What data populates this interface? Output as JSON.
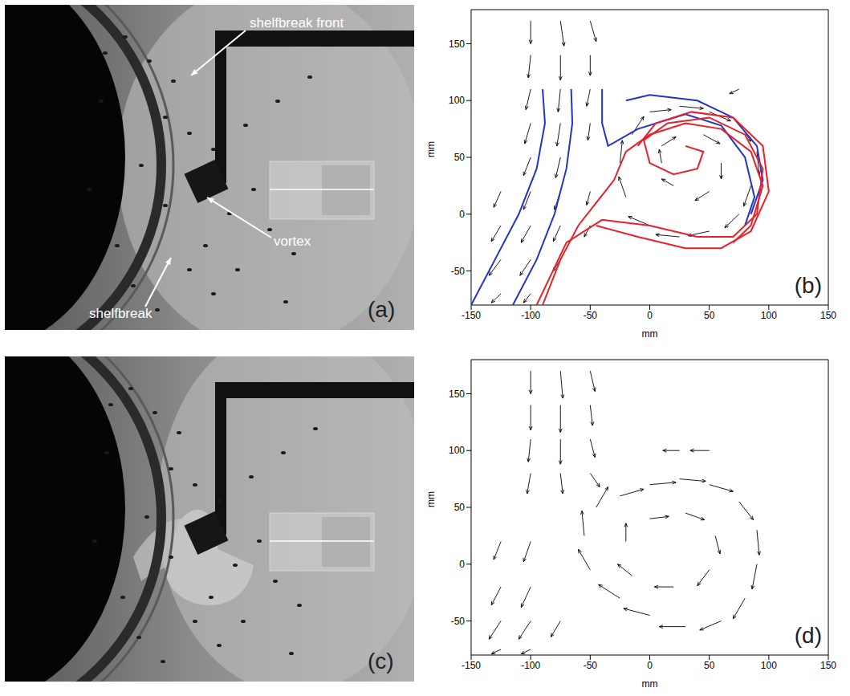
{
  "photos": [
    {
      "label": "(a)",
      "annotations": [
        "shelfbreak front",
        "vortex",
        "shelfbreak"
      ]
    },
    {
      "label": "(c)"
    }
  ],
  "chart_data": [
    {
      "type": "quiver",
      "label": "(b)",
      "xlabel": "mm",
      "ylabel": "mm",
      "xlim": [
        -150,
        150
      ],
      "ylim": [
        -80,
        180
      ],
      "xticks": [
        -150,
        -100,
        -50,
        0,
        50,
        100,
        150
      ],
      "yticks": [
        -50,
        0,
        50,
        100,
        150
      ],
      "color": "#000000",
      "vectors": [
        {
          "x": -100,
          "y": 170,
          "u": 0,
          "v": -20
        },
        {
          "x": -75,
          "y": 170,
          "u": 3,
          "v": -22
        },
        {
          "x": -50,
          "y": 170,
          "u": 5,
          "v": -18
        },
        {
          "x": -100,
          "y": 140,
          "u": -2,
          "v": -20
        },
        {
          "x": -75,
          "y": 140,
          "u": 0,
          "v": -22
        },
        {
          "x": -50,
          "y": 140,
          "u": 0,
          "v": -18
        },
        {
          "x": -100,
          "y": 110,
          "u": -4,
          "v": -18
        },
        {
          "x": -75,
          "y": 110,
          "u": -2,
          "v": -20
        },
        {
          "x": -50,
          "y": 110,
          "u": -3,
          "v": -15
        },
        {
          "x": -100,
          "y": 80,
          "u": -5,
          "v": -18
        },
        {
          "x": -75,
          "y": 80,
          "u": -3,
          "v": -20
        },
        {
          "x": -50,
          "y": 80,
          "u": -2,
          "v": -15
        },
        {
          "x": -100,
          "y": 50,
          "u": -6,
          "v": -16
        },
        {
          "x": -75,
          "y": 50,
          "u": -4,
          "v": -18
        },
        {
          "x": -125,
          "y": 20,
          "u": -6,
          "v": -14
        },
        {
          "x": -100,
          "y": 20,
          "u": -6,
          "v": -16
        },
        {
          "x": -75,
          "y": 20,
          "u": -5,
          "v": -16
        },
        {
          "x": -50,
          "y": 20,
          "u": -3,
          "v": -12
        },
        {
          "x": -125,
          "y": -10,
          "u": -8,
          "v": -14
        },
        {
          "x": -100,
          "y": -10,
          "u": -8,
          "v": -15
        },
        {
          "x": -75,
          "y": -10,
          "u": -6,
          "v": -14
        },
        {
          "x": -50,
          "y": -10,
          "u": -5,
          "v": -10
        },
        {
          "x": -125,
          "y": -40,
          "u": -10,
          "v": -14
        },
        {
          "x": -100,
          "y": -40,
          "u": -9,
          "v": -14
        },
        {
          "x": -75,
          "y": -40,
          "u": -6,
          "v": -10
        },
        {
          "x": -125,
          "y": -70,
          "u": -8,
          "v": -8
        },
        {
          "x": -100,
          "y": -70,
          "u": -6,
          "v": -8
        },
        {
          "x": 0,
          "y": 90,
          "u": 18,
          "v": 2
        },
        {
          "x": 25,
          "y": 95,
          "u": 20,
          "v": -2
        },
        {
          "x": 50,
          "y": 90,
          "u": 18,
          "v": -8
        },
        {
          "x": 75,
          "y": 80,
          "u": 10,
          "v": -16
        },
        {
          "x": 90,
          "y": 55,
          "u": 2,
          "v": -20
        },
        {
          "x": 85,
          "y": 25,
          "u": -6,
          "v": -18
        },
        {
          "x": 75,
          "y": 0,
          "u": -12,
          "v": -12
        },
        {
          "x": 50,
          "y": -15,
          "u": -18,
          "v": -4
        },
        {
          "x": 25,
          "y": -20,
          "u": -20,
          "v": 2
        },
        {
          "x": 0,
          "y": -10,
          "u": -18,
          "v": 8
        },
        {
          "x": -20,
          "y": 15,
          "u": -6,
          "v": 18
        },
        {
          "x": -25,
          "y": 45,
          "u": 2,
          "v": 20
        },
        {
          "x": -15,
          "y": 70,
          "u": 10,
          "v": 16
        },
        {
          "x": 10,
          "y": 60,
          "u": 12,
          "v": 8
        },
        {
          "x": 45,
          "y": 70,
          "u": 14,
          "v": -8
        },
        {
          "x": 60,
          "y": 45,
          "u": 0,
          "v": -14
        },
        {
          "x": 50,
          "y": 20,
          "u": -12,
          "v": -8
        },
        {
          "x": 20,
          "y": 25,
          "u": -10,
          "v": 6
        },
        {
          "x": 10,
          "y": 45,
          "u": -2,
          "v": 12
        },
        {
          "x": 75,
          "y": 110,
          "u": -8,
          "v": -4
        }
      ],
      "contours": [
        {
          "color": "#2233cc",
          "x": [
            -150,
            -130,
            -110,
            -95,
            -88,
            -90
          ],
          "y": [
            -80,
            -40,
            0,
            40,
            80,
            110
          ]
        },
        {
          "color": "#2233cc",
          "x": [
            -115,
            -95,
            -80,
            -70,
            -65,
            -66
          ],
          "y": [
            -80,
            -40,
            0,
            40,
            80,
            110
          ]
        },
        {
          "color": "#2233cc",
          "x": [
            -40,
            -40,
            -35,
            -10,
            30,
            60,
            80,
            88,
            80
          ],
          "y": [
            110,
            80,
            60,
            75,
            88,
            78,
            50,
            15,
            -10
          ]
        },
        {
          "color": "#2233cc",
          "x": [
            -20,
            0,
            40,
            70,
            90,
            95,
            85
          ],
          "y": [
            100,
            105,
            100,
            85,
            60,
            30,
            0
          ]
        },
        {
          "color": "#e8202a",
          "x": [
            -90,
            -75,
            -60,
            -45,
            -30,
            -20,
            0,
            30,
            60,
            85,
            95,
            85,
            70
          ],
          "y": [
            -80,
            -40,
            -10,
            10,
            30,
            55,
            70,
            80,
            75,
            55,
            25,
            -10,
            -25
          ]
        },
        {
          "color": "#e8202a",
          "x": [
            -95,
            -70,
            -40,
            0,
            40,
            70,
            90,
            95,
            80,
            50,
            15,
            -5,
            0,
            20,
            40,
            45,
            30
          ],
          "y": [
            -80,
            -25,
            -5,
            -10,
            -20,
            -20,
            0,
            40,
            70,
            85,
            80,
            65,
            45,
            35,
            40,
            55,
            60
          ]
        },
        {
          "color": "#e8202a",
          "x": [
            -45,
            -10,
            30,
            60,
            85,
            100,
            95,
            70,
            35,
            5,
            -10
          ],
          "y": [
            -10,
            -20,
            -30,
            -30,
            -15,
            20,
            60,
            85,
            90,
            80,
            60
          ]
        }
      ]
    },
    {
      "type": "quiver",
      "label": "(d)",
      "xlabel": "mm",
      "ylabel": "mm",
      "xlim": [
        -150,
        150
      ],
      "ylim": [
        -80,
        180
      ],
      "xticks": [
        -150,
        -100,
        -50,
        0,
        50,
        100,
        150
      ],
      "yticks": [
        -50,
        0,
        50,
        100,
        150
      ],
      "color": "#000000",
      "vectors": [
        {
          "x": -100,
          "y": 170,
          "u": 0,
          "v": -20
        },
        {
          "x": -75,
          "y": 170,
          "u": 2,
          "v": -24
        },
        {
          "x": -50,
          "y": 170,
          "u": 4,
          "v": -18
        },
        {
          "x": -100,
          "y": 140,
          "u": 0,
          "v": -22
        },
        {
          "x": -75,
          "y": 140,
          "u": 0,
          "v": -24
        },
        {
          "x": -50,
          "y": 140,
          "u": 2,
          "v": -18
        },
        {
          "x": -100,
          "y": 110,
          "u": -2,
          "v": -20
        },
        {
          "x": -75,
          "y": 110,
          "u": 0,
          "v": -22
        },
        {
          "x": -50,
          "y": 110,
          "u": 4,
          "v": -16
        },
        {
          "x": -100,
          "y": 80,
          "u": -3,
          "v": -18
        },
        {
          "x": -75,
          "y": 80,
          "u": 2,
          "v": -18
        },
        {
          "x": -50,
          "y": 80,
          "u": 8,
          "v": -12
        },
        {
          "x": -125,
          "y": 20,
          "u": -6,
          "v": -16
        },
        {
          "x": -100,
          "y": 20,
          "u": -6,
          "v": -18
        },
        {
          "x": -125,
          "y": -20,
          "u": -8,
          "v": -16
        },
        {
          "x": -100,
          "y": -20,
          "u": -8,
          "v": -18
        },
        {
          "x": -125,
          "y": -50,
          "u": -10,
          "v": -16
        },
        {
          "x": -100,
          "y": -50,
          "u": -10,
          "v": -16
        },
        {
          "x": -75,
          "y": -50,
          "u": -8,
          "v": -14
        },
        {
          "x": -125,
          "y": -75,
          "u": -8,
          "v": -4
        },
        {
          "x": -100,
          "y": -75,
          "u": -8,
          "v": -4
        },
        {
          "x": -25,
          "y": 60,
          "u": 20,
          "v": 6
        },
        {
          "x": 0,
          "y": 70,
          "u": 22,
          "v": 2
        },
        {
          "x": 25,
          "y": 75,
          "u": 22,
          "v": -2
        },
        {
          "x": 50,
          "y": 70,
          "u": 20,
          "v": -6
        },
        {
          "x": 75,
          "y": 55,
          "u": 12,
          "v": -16
        },
        {
          "x": 90,
          "y": 30,
          "u": 2,
          "v": -22
        },
        {
          "x": 90,
          "y": 0,
          "u": -4,
          "v": -22
        },
        {
          "x": 80,
          "y": -30,
          "u": -10,
          "v": -18
        },
        {
          "x": 60,
          "y": -50,
          "u": -18,
          "v": -8
        },
        {
          "x": 30,
          "y": -55,
          "u": -22,
          "v": 0
        },
        {
          "x": 0,
          "y": -45,
          "u": -22,
          "v": 6
        },
        {
          "x": -25,
          "y": -30,
          "u": -18,
          "v": 12
        },
        {
          "x": -50,
          "y": -5,
          "u": -10,
          "v": 18
        },
        {
          "x": -55,
          "y": 25,
          "u": -2,
          "v": 22
        },
        {
          "x": -45,
          "y": 50,
          "u": 10,
          "v": 18
        },
        {
          "x": 0,
          "y": 40,
          "u": 16,
          "v": 2
        },
        {
          "x": 30,
          "y": 45,
          "u": 16,
          "v": -6
        },
        {
          "x": 55,
          "y": 25,
          "u": 4,
          "v": -16
        },
        {
          "x": 50,
          "y": -5,
          "u": -10,
          "v": -14
        },
        {
          "x": 20,
          "y": -20,
          "u": -16,
          "v": 0
        },
        {
          "x": -15,
          "y": -10,
          "u": -12,
          "v": 10
        },
        {
          "x": -20,
          "y": 20,
          "u": 0,
          "v": 16
        },
        {
          "x": 50,
          "y": 100,
          "u": -16,
          "v": 0
        },
        {
          "x": 25,
          "y": 100,
          "u": -14,
          "v": 0
        }
      ]
    }
  ]
}
